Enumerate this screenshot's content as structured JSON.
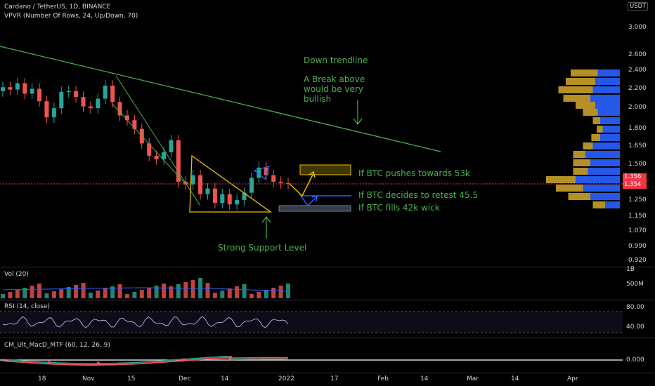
{
  "header": {
    "symbol_line": "Cardano / TetherUS, 1D, BINANCE",
    "indicator_line": "VPVR (Number Of Rows, 24, Up/Down, 70)",
    "currency_badge": "USDT"
  },
  "price_axis": {
    "labels": [
      "3.000",
      "2.600",
      "2.400",
      "2.200",
      "2.000",
      "1.800",
      "1.650",
      "1.500",
      "1.250",
      "1.150",
      "1.070",
      "0.990",
      "0.920"
    ],
    "current_price": "1.356",
    "current_price_2": "1.354"
  },
  "annotations": {
    "trendline_title": "Down trendline",
    "break_note": "A Break above would be very bullish",
    "support": "Strong Support Level",
    "scenario_1": "If BTC pushes towards 53k",
    "scenario_2": "If BTC decides to retest 45.5",
    "scenario_3": "If BTC fills 42k wick"
  },
  "volume_pane": {
    "label": "Vol (20)",
    "axis": [
      "1B",
      "500M"
    ]
  },
  "rsi_pane": {
    "label": "RSI (14, close)",
    "axis": [
      "80.00",
      "40.00"
    ]
  },
  "macd_pane": {
    "label": "CM_Ult_MacD_MTF (60, 12, 26, 9)",
    "axis": [
      "0.000"
    ]
  },
  "time_axis": [
    "18",
    "Nov",
    "15",
    "Dec",
    "14",
    "2022",
    "17",
    "Feb",
    "14",
    "Mar",
    "14",
    "Apr"
  ],
  "colors": {
    "up": "#26a69a",
    "down": "#ef5350",
    "green_line": "#4caf50",
    "yellow": "#e5c100",
    "blue": "#2962ff",
    "vpvr_up": "#2962ff",
    "vpvr_down": "#c8a02a",
    "price_line": "#f23645"
  },
  "chart_data": {
    "type": "candlestick",
    "title": "Cardano / TetherUS, 1D, BINANCE",
    "ylim": [
      0.9,
      3.1
    ],
    "log_scale": true,
    "closes": [
      2.3,
      2.27,
      2.35,
      2.22,
      2.28,
      2.13,
      1.95,
      2.05,
      2.24,
      2.25,
      2.18,
      2.07,
      2.05,
      2.16,
      2.32,
      2.12,
      1.97,
      1.92,
      1.83,
      1.69,
      1.58,
      1.55,
      1.61,
      1.72,
      1.37,
      1.35,
      1.42,
      1.28,
      1.32,
      1.22,
      1.28,
      1.21,
      1.24,
      1.29,
      1.4,
      1.48,
      1.42,
      1.37,
      1.36,
      1.354
    ],
    "current_price": 1.354,
    "scenarios": [
      {
        "label": "If BTC pushes towards 53k",
        "zone": [
          1.44,
          1.52
        ]
      },
      {
        "label": "If BTC decides to retest 45.5",
        "level": 1.28
      },
      {
        "label": "If BTC fills 42k wick",
        "zone": [
          1.19,
          1.21
        ]
      }
    ],
    "support_triangle": {
      "label": "Strong Support Level"
    }
  }
}
